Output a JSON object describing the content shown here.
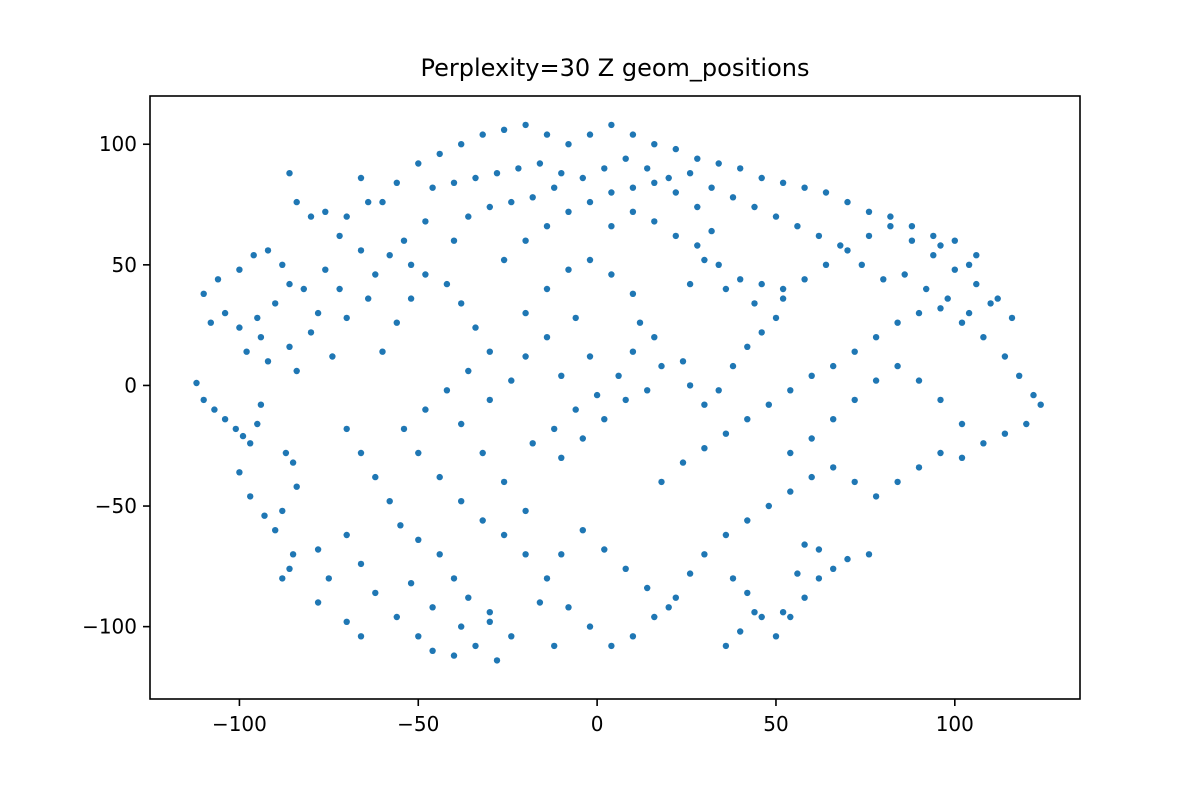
{
  "chart_data": {
    "type": "scatter",
    "title": "Perplexity=30 Z geom_positions",
    "xlabel": "",
    "ylabel": "",
    "xlim": [
      -125,
      135
    ],
    "ylim": [
      -130,
      120
    ],
    "x_ticks": [
      -100,
      -50,
      0,
      50,
      100
    ],
    "y_ticks": [
      -100,
      -50,
      0,
      50,
      100
    ],
    "x_tick_labels": [
      "−100",
      "−50",
      "0",
      "50",
      "100"
    ],
    "y_tick_labels": [
      "−100",
      "−50",
      "0",
      "50",
      "100"
    ],
    "grid": false,
    "legend": false,
    "series": [
      {
        "color": "#1f77b4",
        "points": [
          [
            -112,
            1
          ],
          [
            -110,
            -6
          ],
          [
            -107,
            -10
          ],
          [
            -104,
            -14
          ],
          [
            -101,
            -18
          ],
          [
            -99,
            -21
          ],
          [
            -97,
            -24
          ],
          [
            -95,
            -16
          ],
          [
            -94,
            -8
          ],
          [
            -110,
            38
          ],
          [
            -106,
            44
          ],
          [
            -100,
            48
          ],
          [
            -96,
            54
          ],
          [
            -92,
            56
          ],
          [
            -88,
            50
          ],
          [
            -86,
            42
          ],
          [
            -90,
            34
          ],
          [
            -95,
            28
          ],
          [
            -100,
            24
          ],
          [
            -98,
            14
          ],
          [
            -92,
            10
          ],
          [
            -86,
            16
          ],
          [
            -80,
            22
          ],
          [
            -78,
            30
          ],
          [
            -82,
            40
          ],
          [
            -76,
            48
          ],
          [
            -72,
            40
          ],
          [
            -70,
            28
          ],
          [
            -74,
            12
          ],
          [
            -84,
            6
          ],
          [
            -94,
            20
          ],
          [
            -104,
            30
          ],
          [
            -108,
            26
          ],
          [
            -100,
            -36
          ],
          [
            -97,
            -46
          ],
          [
            -93,
            -54
          ],
          [
            -90,
            -60
          ],
          [
            -88,
            -52
          ],
          [
            -85,
            -32
          ],
          [
            -84,
            -42
          ],
          [
            -87,
            -28
          ],
          [
            -86,
            -76
          ],
          [
            -88,
            -80
          ],
          [
            -85,
            -70
          ],
          [
            -78,
            -68
          ],
          [
            -75,
            -80
          ],
          [
            -70,
            -62
          ],
          [
            -66,
            -74
          ],
          [
            -62,
            -86
          ],
          [
            -78,
            -90
          ],
          [
            -70,
            -98
          ],
          [
            -66,
            -104
          ],
          [
            -70,
            -18
          ],
          [
            -66,
            -28
          ],
          [
            -62,
            -38
          ],
          [
            -58,
            -48
          ],
          [
            -55,
            -58
          ],
          [
            -50,
            -64
          ],
          [
            -44,
            -70
          ],
          [
            -40,
            -80
          ],
          [
            -36,
            -88
          ],
          [
            -30,
            -94
          ],
          [
            -52,
            -82
          ],
          [
            -46,
            -92
          ],
          [
            -56,
            -96
          ],
          [
            -50,
            -104
          ],
          [
            -46,
            -110
          ],
          [
            -40,
            -112
          ],
          [
            -34,
            -108
          ],
          [
            -28,
            -114
          ],
          [
            -24,
            -104
          ],
          [
            -30,
            -98
          ],
          [
            -38,
            -100
          ],
          [
            -60,
            14
          ],
          [
            -56,
            26
          ],
          [
            -52,
            36
          ],
          [
            -48,
            46
          ],
          [
            -42,
            42
          ],
          [
            -38,
            34
          ],
          [
            -34,
            24
          ],
          [
            -30,
            14
          ],
          [
            -36,
            6
          ],
          [
            -42,
            -2
          ],
          [
            -48,
            -10
          ],
          [
            -54,
            -18
          ],
          [
            -50,
            -28
          ],
          [
            -44,
            -38
          ],
          [
            -38,
            -48
          ],
          [
            -32,
            -56
          ],
          [
            -26,
            -62
          ],
          [
            -20,
            -52
          ],
          [
            -26,
            -40
          ],
          [
            -32,
            -28
          ],
          [
            -38,
            -16
          ],
          [
            -30,
            -6
          ],
          [
            -24,
            2
          ],
          [
            -20,
            12
          ],
          [
            -20,
            30
          ],
          [
            -14,
            40
          ],
          [
            -8,
            48
          ],
          [
            -2,
            52
          ],
          [
            4,
            46
          ],
          [
            10,
            38
          ],
          [
            12,
            26
          ],
          [
            10,
            14
          ],
          [
            6,
            4
          ],
          [
            0,
            -4
          ],
          [
            -6,
            -10
          ],
          [
            -12,
            -18
          ],
          [
            -18,
            -24
          ],
          [
            -10,
            -30
          ],
          [
            -4,
            -22
          ],
          [
            2,
            -14
          ],
          [
            8,
            -6
          ],
          [
            14,
            -2
          ],
          [
            18,
            8
          ],
          [
            16,
            20
          ],
          [
            -6,
            28
          ],
          [
            -14,
            20
          ],
          [
            -2,
            12
          ],
          [
            -10,
            4
          ],
          [
            -20,
            -70
          ],
          [
            -14,
            -80
          ],
          [
            -8,
            -92
          ],
          [
            -2,
            -100
          ],
          [
            4,
            -108
          ],
          [
            10,
            -104
          ],
          [
            16,
            -96
          ],
          [
            22,
            -88
          ],
          [
            26,
            -78
          ],
          [
            30,
            -70
          ],
          [
            36,
            -62
          ],
          [
            42,
            -56
          ],
          [
            48,
            -50
          ],
          [
            54,
            -44
          ],
          [
            60,
            -38
          ],
          [
            66,
            -34
          ],
          [
            72,
            -40
          ],
          [
            78,
            -46
          ],
          [
            84,
            -40
          ],
          [
            90,
            -34
          ],
          [
            96,
            -28
          ],
          [
            102,
            -30
          ],
          [
            -4,
            -60
          ],
          [
            2,
            -68
          ],
          [
            8,
            -76
          ],
          [
            14,
            -84
          ],
          [
            20,
            -92
          ],
          [
            -10,
            -70
          ],
          [
            -16,
            -90
          ],
          [
            -12,
            -108
          ],
          [
            18,
            -40
          ],
          [
            24,
            -32
          ],
          [
            30,
            -26
          ],
          [
            36,
            -20
          ],
          [
            42,
            -14
          ],
          [
            48,
            -8
          ],
          [
            54,
            -2
          ],
          [
            60,
            4
          ],
          [
            66,
            8
          ],
          [
            72,
            14
          ],
          [
            78,
            20
          ],
          [
            84,
            26
          ],
          [
            90,
            30
          ],
          [
            96,
            32
          ],
          [
            102,
            26
          ],
          [
            108,
            20
          ],
          [
            114,
            12
          ],
          [
            118,
            4
          ],
          [
            122,
            -4
          ],
          [
            124,
            -8
          ],
          [
            120,
            -16
          ],
          [
            114,
            -20
          ],
          [
            108,
            -24
          ],
          [
            102,
            -16
          ],
          [
            96,
            -6
          ],
          [
            90,
            2
          ],
          [
            84,
            8
          ],
          [
            78,
            2
          ],
          [
            72,
            -6
          ],
          [
            66,
            -14
          ],
          [
            60,
            -22
          ],
          [
            54,
            -28
          ],
          [
            24,
            10
          ],
          [
            26,
            0
          ],
          [
            30,
            -8
          ],
          [
            34,
            -2
          ],
          [
            38,
            8
          ],
          [
            42,
            16
          ],
          [
            46,
            22
          ],
          [
            50,
            28
          ],
          [
            -26,
            52
          ],
          [
            -20,
            60
          ],
          [
            -14,
            66
          ],
          [
            -8,
            72
          ],
          [
            -2,
            76
          ],
          [
            4,
            80
          ],
          [
            10,
            82
          ],
          [
            16,
            84
          ],
          [
            22,
            80
          ],
          [
            28,
            74
          ],
          [
            32,
            64
          ],
          [
            30,
            52
          ],
          [
            26,
            42
          ],
          [
            36,
            40
          ],
          [
            44,
            34
          ],
          [
            52,
            36
          ],
          [
            58,
            44
          ],
          [
            64,
            50
          ],
          [
            70,
            56
          ],
          [
            76,
            62
          ],
          [
            82,
            66
          ],
          [
            88,
            60
          ],
          [
            94,
            54
          ],
          [
            100,
            48
          ],
          [
            106,
            42
          ],
          [
            112,
            36
          ],
          [
            116,
            28
          ],
          [
            110,
            34
          ],
          [
            104,
            50
          ],
          [
            96,
            58
          ],
          [
            -60,
            76
          ],
          [
            -56,
            84
          ],
          [
            -50,
            92
          ],
          [
            -44,
            96
          ],
          [
            -38,
            100
          ],
          [
            -32,
            104
          ],
          [
            -26,
            106
          ],
          [
            -20,
            108
          ],
          [
            -14,
            104
          ],
          [
            -8,
            100
          ],
          [
            -2,
            104
          ],
          [
            4,
            108
          ],
          [
            10,
            104
          ],
          [
            16,
            100
          ],
          [
            22,
            98
          ],
          [
            28,
            94
          ],
          [
            34,
            92
          ],
          [
            40,
            90
          ],
          [
            46,
            86
          ],
          [
            52,
            84
          ],
          [
            58,
            82
          ],
          [
            64,
            80
          ],
          [
            70,
            76
          ],
          [
            76,
            72
          ],
          [
            82,
            70
          ],
          [
            88,
            66
          ],
          [
            94,
            62
          ],
          [
            100,
            60
          ],
          [
            106,
            54
          ],
          [
            -86,
            88
          ],
          [
            -84,
            76
          ],
          [
            -80,
            70
          ],
          [
            -76,
            72
          ],
          [
            -70,
            70
          ],
          [
            -64,
            76
          ],
          [
            -66,
            86
          ],
          [
            -72,
            62
          ],
          [
            -66,
            56
          ],
          [
            -62,
            46
          ],
          [
            -64,
            36
          ],
          [
            -46,
            82
          ],
          [
            -40,
            84
          ],
          [
            -34,
            86
          ],
          [
            -28,
            88
          ],
          [
            -22,
            90
          ],
          [
            -16,
            92
          ],
          [
            -10,
            88
          ],
          [
            -4,
            86
          ],
          [
            2,
            90
          ],
          [
            8,
            94
          ],
          [
            14,
            90
          ],
          [
            20,
            86
          ],
          [
            26,
            88
          ],
          [
            32,
            82
          ],
          [
            38,
            78
          ],
          [
            44,
            74
          ],
          [
            50,
            70
          ],
          [
            56,
            66
          ],
          [
            62,
            62
          ],
          [
            68,
            58
          ],
          [
            74,
            50
          ],
          [
            80,
            44
          ],
          [
            86,
            46
          ],
          [
            92,
            40
          ],
          [
            98,
            36
          ],
          [
            104,
            30
          ],
          [
            -40,
            60
          ],
          [
            -36,
            70
          ],
          [
            -30,
            74
          ],
          [
            -24,
            76
          ],
          [
            -18,
            78
          ],
          [
            -12,
            82
          ],
          [
            -54,
            60
          ],
          [
            -48,
            68
          ],
          [
            -52,
            50
          ],
          [
            -58,
            54
          ],
          [
            22,
            62
          ],
          [
            16,
            68
          ],
          [
            10,
            72
          ],
          [
            4,
            66
          ],
          [
            28,
            58
          ],
          [
            34,
            50
          ],
          [
            40,
            44
          ],
          [
            46,
            42
          ],
          [
            52,
            40
          ],
          [
            38,
            -80
          ],
          [
            42,
            -86
          ],
          [
            44,
            -94
          ],
          [
            40,
            -102
          ],
          [
            36,
            -108
          ],
          [
            46,
            -96
          ],
          [
            50,
            -104
          ],
          [
            54,
            -96
          ],
          [
            58,
            -88
          ],
          [
            62,
            -80
          ],
          [
            66,
            -76
          ],
          [
            70,
            -72
          ],
          [
            76,
            -70
          ],
          [
            62,
            -68
          ],
          [
            56,
            -78
          ],
          [
            52,
            -94
          ],
          [
            58,
            -66
          ]
        ]
      }
    ]
  }
}
